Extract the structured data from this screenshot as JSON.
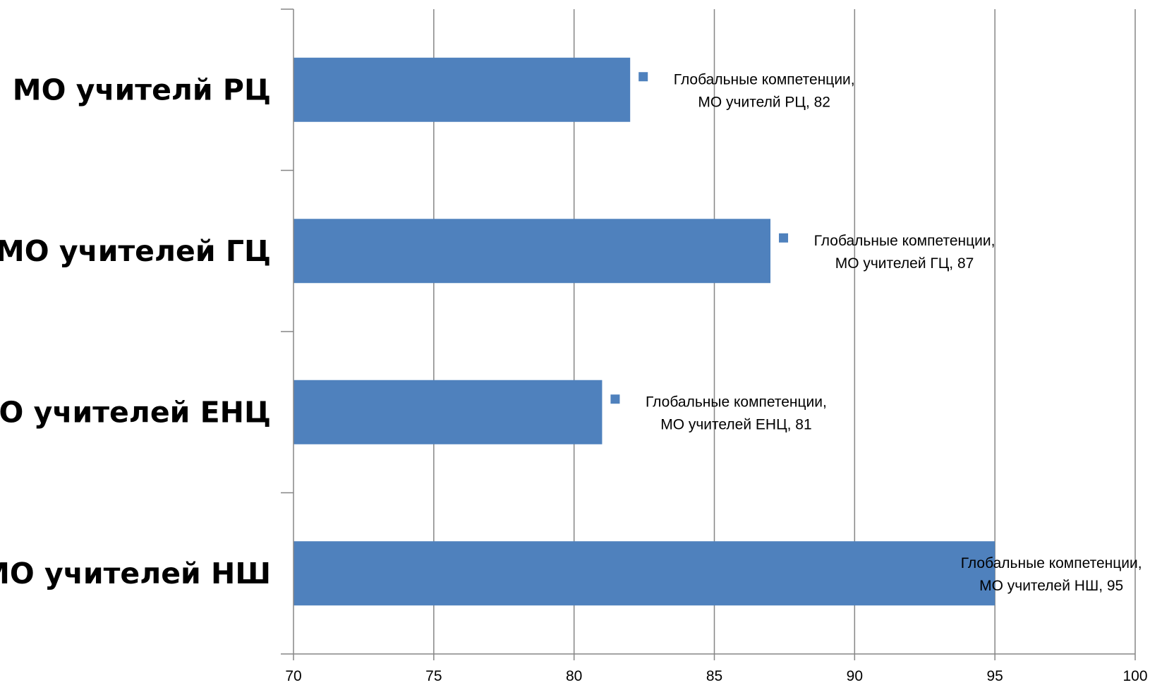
{
  "chart_data": {
    "type": "bar",
    "orientation": "horizontal",
    "categories": [
      "МО учителей НШ",
      "МО учителей ЕНЦ",
      "МО учителей ГЦ",
      "МО учителй РЦ"
    ],
    "series": [
      {
        "name": "Глобальные компетенции",
        "values": [
          95,
          81,
          87,
          82
        ],
        "color": "#4f81bd"
      }
    ],
    "data_labels": [
      [
        "Глобальные компетенции,",
        "МО учителей НШ, 95"
      ],
      [
        "Глобальные компетенции,",
        "МО учителей ЕНЦ, 81"
      ],
      [
        "Глобальные компетенции,",
        "МО учителей ГЦ, 87"
      ],
      [
        "Глобальные компетенции,",
        "МО учителй РЦ, 82"
      ]
    ],
    "x_ticks": [
      "70",
      "75",
      "80",
      "85",
      "90",
      "95",
      "100"
    ],
    "xlim": [
      70,
      100
    ],
    "grid": true,
    "legend_key_markers": true,
    "title": "",
    "xlabel": "",
    "ylabel": ""
  }
}
